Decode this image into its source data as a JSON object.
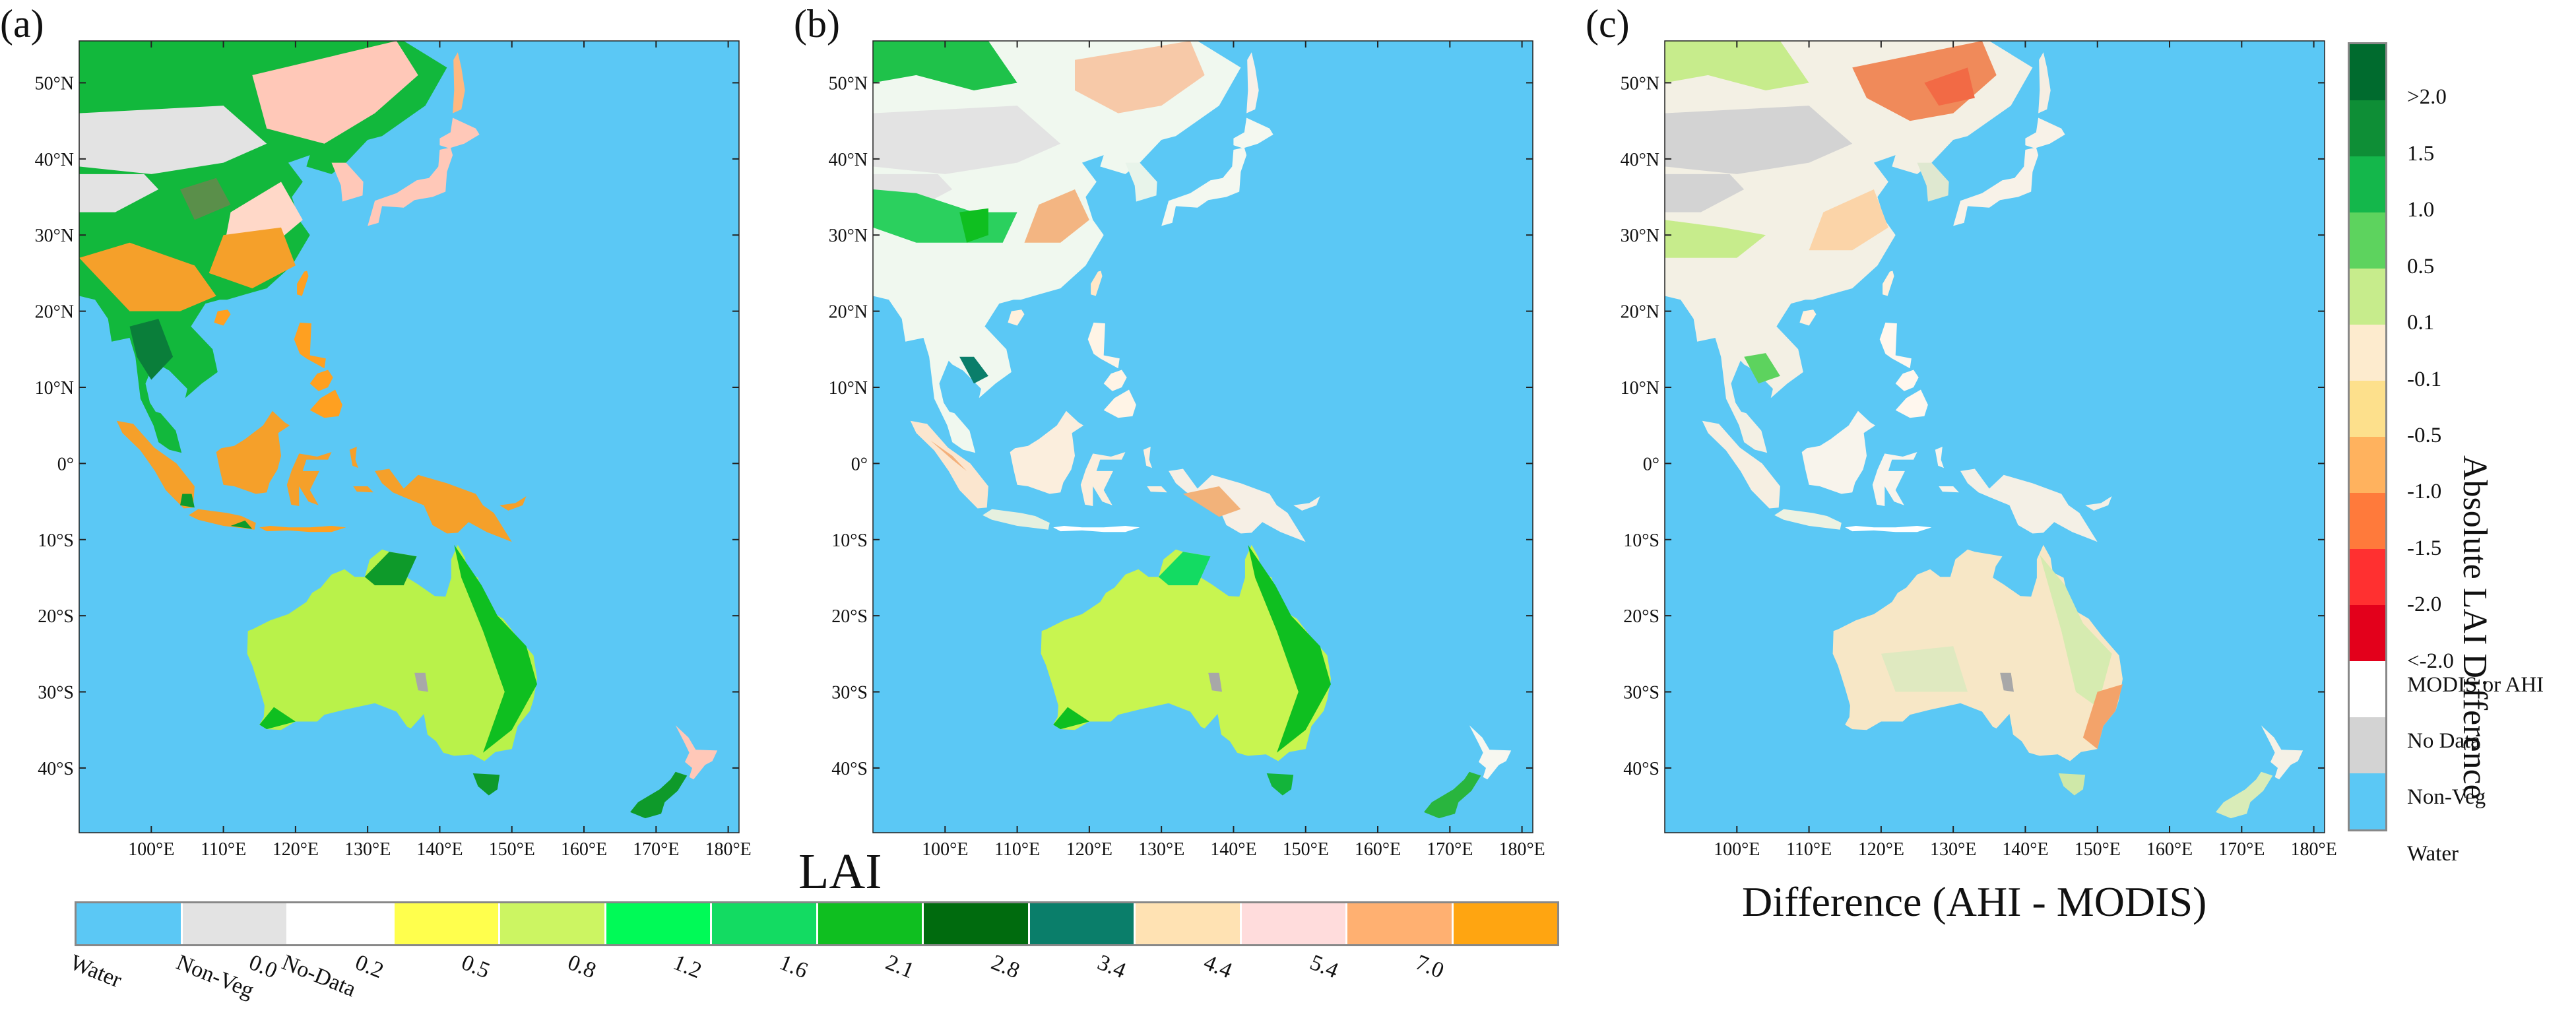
{
  "panels": [
    {
      "label": "(a)"
    },
    {
      "label": "(b)"
    },
    {
      "label": "(c)"
    }
  ],
  "lat_ticks": [
    "50°N",
    "40°N",
    "30°N",
    "20°N",
    "10°N",
    "0°",
    "10°S",
    "20°S",
    "30°S",
    "40°S"
  ],
  "lon_ticks": [
    "100°E",
    "110°E",
    "120°E",
    "130°E",
    "140°E",
    "150°E",
    "160°E",
    "170°E",
    "180°E"
  ],
  "lai_legend": {
    "title": "LAI",
    "labels": [
      "Water",
      "Non-Veg",
      "No-Data",
      "0.0",
      "0.2",
      "0.5",
      "0.8",
      "1.2",
      "1.6",
      "2.1",
      "2.8",
      "3.4",
      "4.4",
      "5.4",
      "7.0"
    ],
    "colors": [
      "#5bc8f5",
      "#e3e3e3",
      "#ffffff",
      "#ffff4d",
      "#ccf562",
      "#00fa57",
      "#13db62",
      "#0fbf20",
      "#006b0e",
      "#0a7e6a",
      "#ffe2b3",
      "#ffdcdc",
      "#ffb071",
      "#ffa511"
    ]
  },
  "diff_legend": {
    "title": "Difference (AHI - MODIS)",
    "axis_label": "Absolute LAI Difference",
    "labels": [
      ">2.0",
      "1.5",
      "1.0",
      "0.5",
      "0.1",
      "-0.1",
      "-0.5",
      "-1.0",
      "-1.5",
      "-2.0",
      "<-2.0",
      "MODIS or AHI",
      "No Data",
      "Non-Veg",
      "Water"
    ],
    "colors": [
      "#006b2e",
      "#0e8e36",
      "#14b74b",
      "#5dd35e",
      "#c7ec8c",
      "#fdebce",
      "#fde08c",
      "#ffb25e",
      "#ff7a3b",
      "#ff3030",
      "#e3001b",
      "#ffffff",
      "#d3d3d3",
      "#5bc8f5"
    ]
  },
  "colors": {
    "water": "#5bc8f5",
    "nonveg": "#e3e3e3"
  }
}
